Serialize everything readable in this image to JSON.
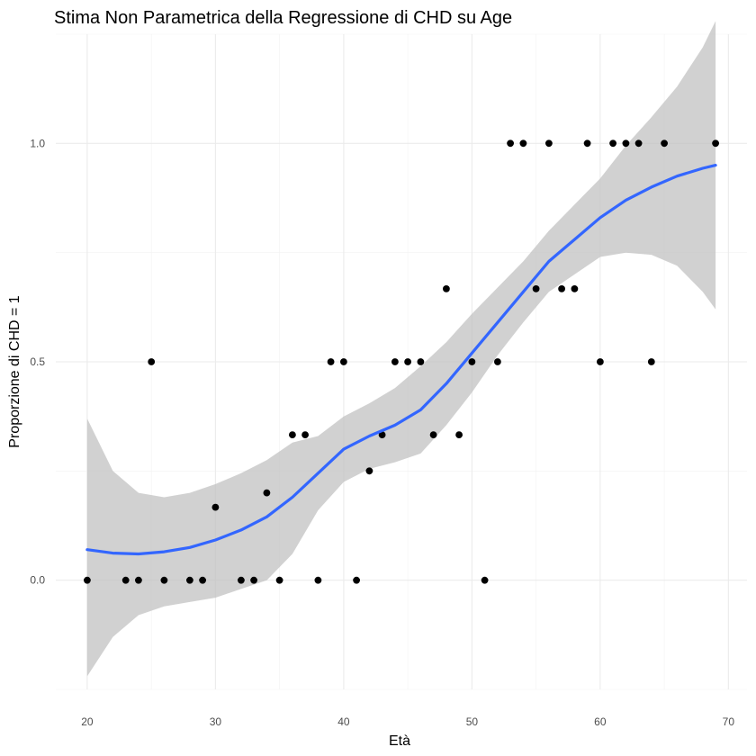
{
  "chart_data": {
    "type": "scatter",
    "title": "Stima Non Parametrica della Regressione di CHD su Age",
    "xlabel": "Età",
    "ylabel": "Proporzione di CHD = 1",
    "xlim": [
      17.55,
      71.45
    ],
    "ylim": [
      -0.25,
      1.25
    ],
    "x_ticks": [
      20,
      30,
      40,
      50,
      60,
      70
    ],
    "x_tick_labels": [
      "20",
      "30",
      "40",
      "50",
      "60",
      "70"
    ],
    "y_ticks": [
      0.0,
      0.5,
      1.0
    ],
    "y_tick_labels": [
      "0.0",
      "0.5",
      "1.0"
    ],
    "grid": true,
    "legend": "none",
    "colors": {
      "points": "#000000",
      "smooth_line": "#3366ff",
      "confidence_band": "#bfbfbf"
    },
    "points": [
      {
        "x": 20,
        "y": 0.0
      },
      {
        "x": 23,
        "y": 0.0
      },
      {
        "x": 24,
        "y": 0.0
      },
      {
        "x": 25,
        "y": 0.5
      },
      {
        "x": 26,
        "y": 0.0
      },
      {
        "x": 28,
        "y": 0.0
      },
      {
        "x": 29,
        "y": 0.0
      },
      {
        "x": 30,
        "y": 0.167
      },
      {
        "x": 32,
        "y": 0.0
      },
      {
        "x": 33,
        "y": 0.0
      },
      {
        "x": 34,
        "y": 0.2
      },
      {
        "x": 35,
        "y": 0.0
      },
      {
        "x": 36,
        "y": 0.333
      },
      {
        "x": 37,
        "y": 0.333
      },
      {
        "x": 38,
        "y": 0.0
      },
      {
        "x": 39,
        "y": 0.5
      },
      {
        "x": 40,
        "y": 0.5
      },
      {
        "x": 41,
        "y": 0.0
      },
      {
        "x": 42,
        "y": 0.25
      },
      {
        "x": 43,
        "y": 0.333
      },
      {
        "x": 44,
        "y": 0.5
      },
      {
        "x": 45,
        "y": 0.5
      },
      {
        "x": 46,
        "y": 0.5
      },
      {
        "x": 47,
        "y": 0.333
      },
      {
        "x": 48,
        "y": 0.667
      },
      {
        "x": 49,
        "y": 0.333
      },
      {
        "x": 50,
        "y": 0.5
      },
      {
        "x": 51,
        "y": 0.0
      },
      {
        "x": 52,
        "y": 0.5
      },
      {
        "x": 53,
        "y": 1.0
      },
      {
        "x": 54,
        "y": 1.0
      },
      {
        "x": 55,
        "y": 0.667
      },
      {
        "x": 56,
        "y": 1.0
      },
      {
        "x": 57,
        "y": 0.667
      },
      {
        "x": 58,
        "y": 0.667
      },
      {
        "x": 59,
        "y": 1.0
      },
      {
        "x": 60,
        "y": 0.5
      },
      {
        "x": 61,
        "y": 1.0
      },
      {
        "x": 62,
        "y": 1.0
      },
      {
        "x": 63,
        "y": 1.0
      },
      {
        "x": 64,
        "y": 0.5
      },
      {
        "x": 65,
        "y": 1.0
      },
      {
        "x": 69,
        "y": 1.0
      }
    ],
    "smooth": {
      "name": "",
      "x": [
        20,
        22,
        24,
        26,
        28,
        30,
        32,
        34,
        36,
        38,
        40,
        42,
        44,
        46,
        48,
        50,
        52,
        54,
        56,
        58,
        60,
        62,
        64,
        66,
        68,
        69
      ],
      "y": [
        0.07,
        0.062,
        0.06,
        0.065,
        0.075,
        0.092,
        0.115,
        0.145,
        0.19,
        0.245,
        0.3,
        0.33,
        0.355,
        0.39,
        0.45,
        0.52,
        0.59,
        0.66,
        0.73,
        0.78,
        0.83,
        0.87,
        0.9,
        0.925,
        0.943,
        0.95
      ],
      "lower": [
        -0.22,
        -0.13,
        -0.08,
        -0.06,
        -0.05,
        -0.04,
        -0.02,
        0.0,
        0.06,
        0.16,
        0.225,
        0.255,
        0.27,
        0.29,
        0.355,
        0.43,
        0.515,
        0.59,
        0.66,
        0.7,
        0.74,
        0.75,
        0.745,
        0.72,
        0.66,
        0.62
      ],
      "upper": [
        0.37,
        0.25,
        0.2,
        0.19,
        0.2,
        0.22,
        0.245,
        0.275,
        0.315,
        0.33,
        0.375,
        0.405,
        0.44,
        0.49,
        0.545,
        0.61,
        0.67,
        0.73,
        0.8,
        0.86,
        0.92,
        0.995,
        1.06,
        1.13,
        1.22,
        1.28
      ]
    }
  }
}
